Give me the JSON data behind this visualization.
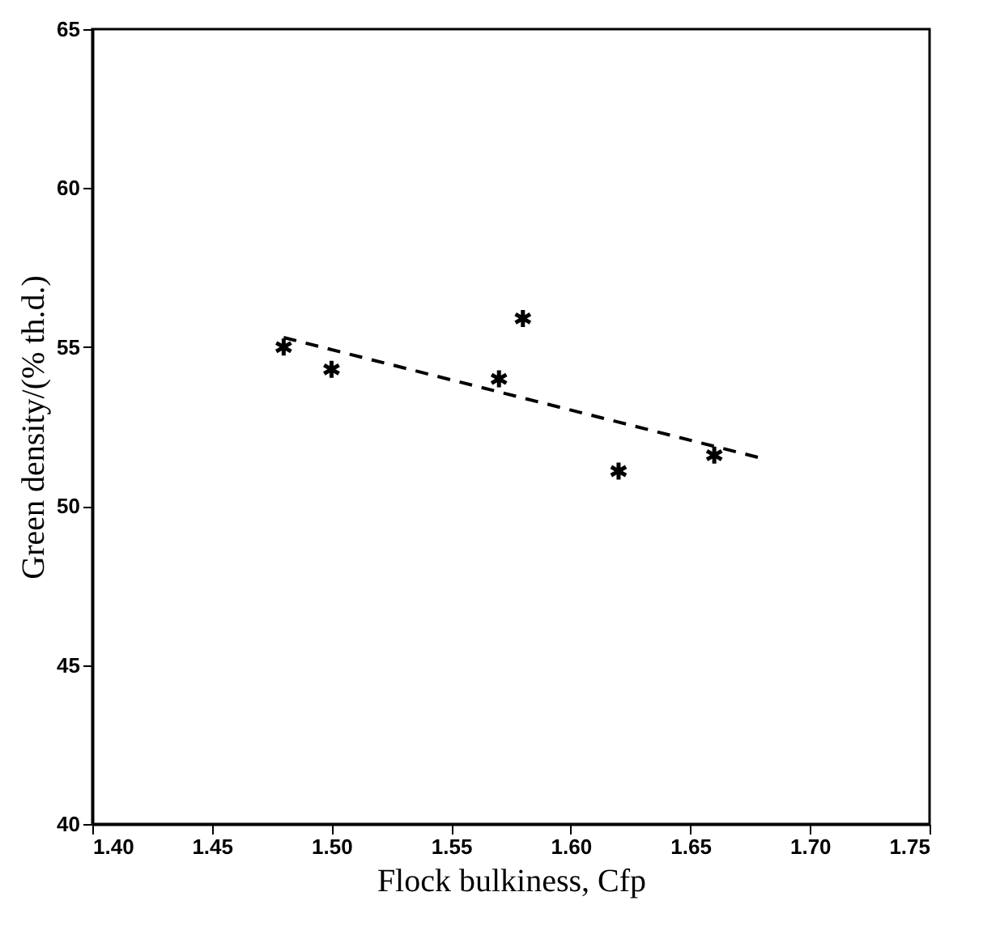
{
  "chart_data": {
    "type": "scatter",
    "xlabel": "Flock bulkiness, Cfp",
    "ylabel": "Green density/(% th.d.)",
    "xlim": [
      1.4,
      1.75
    ],
    "xticks": [
      {
        "value": 1.4,
        "label": "1.40"
      },
      1.45,
      {
        "value": 1.5,
        "label": "1.50"
      },
      1.55,
      {
        "value": 1.6,
        "label": "1.60"
      },
      1.65,
      {
        "value": 1.7,
        "label": "1.70"
      },
      1.75
    ],
    "ylim": [
      40,
      65
    ],
    "yticks": [
      40,
      45,
      50,
      55,
      60,
      65
    ],
    "grid": false,
    "series": [
      {
        "type": "scatter",
        "marker": "cross",
        "color": "#000000",
        "x": [
          1.48,
          1.5,
          1.57,
          1.58,
          1.62,
          1.66
        ],
        "values": [
          55.0,
          54.3,
          54.0,
          55.9,
          51.1,
          51.6
        ]
      },
      {
        "type": "line",
        "line_style": "dashed",
        "marker": "none",
        "color": "#000000",
        "x": [
          1.48,
          1.68
        ],
        "values": [
          55.3,
          51.5
        ]
      }
    ]
  }
}
